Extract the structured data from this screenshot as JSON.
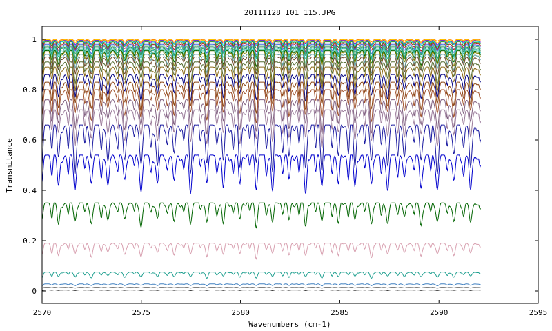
{
  "chart_data": {
    "type": "line",
    "title": "20111128_I01_115.JPG",
    "xlabel": "Wavenumbers (cm-1)",
    "ylabel": "Transmitance",
    "xlim": [
      2570,
      2595
    ],
    "ylim": [
      0,
      1
    ],
    "x_data_range": [
      2570,
      2592.1
    ],
    "xticks": [
      2570,
      2575,
      2580,
      2585,
      2590,
      2595
    ],
    "yticks": [
      0,
      0.2,
      0.4,
      0.6,
      0.8,
      1
    ],
    "xtick_labels": [
      "2570",
      "2575",
      "2580",
      "2585",
      "2590",
      "2595"
    ],
    "ytick_labels": [
      "0",
      "0.2",
      "0.4",
      "0.6",
      "0.8",
      "1"
    ],
    "grid": false,
    "legend": "none",
    "line_spacing_cm1": 0.83,
    "series": [
      {
        "color": "#ff8c00",
        "baseline": 1.0,
        "depth": 0.01
      },
      {
        "color": "#ffd700",
        "baseline": 0.998,
        "depth": 0.015
      },
      {
        "color": "#9400d3",
        "baseline": 0.996,
        "depth": 0.02
      },
      {
        "color": "#00ced1",
        "baseline": 0.994,
        "depth": 0.025
      },
      {
        "color": "#228b22",
        "baseline": 0.99,
        "depth": 0.03
      },
      {
        "color": "#b22222",
        "baseline": 0.985,
        "depth": 0.035
      },
      {
        "color": "#4169e1",
        "baseline": 0.98,
        "depth": 0.04
      },
      {
        "color": "#3cb371",
        "baseline": 0.975,
        "depth": 0.045
      },
      {
        "color": "#2e8b57",
        "baseline": 0.97,
        "depth": 0.05
      },
      {
        "color": "#20b2aa",
        "baseline": 0.965,
        "depth": 0.055
      },
      {
        "color": "#66cdaa",
        "baseline": 0.96,
        "depth": 0.06
      },
      {
        "color": "#006400",
        "baseline": 0.955,
        "depth": 0.065
      },
      {
        "color": "#808000",
        "baseline": 0.95,
        "depth": 0.07
      },
      {
        "color": "#5f9ea0",
        "baseline": 0.94,
        "depth": 0.075
      },
      {
        "color": "#6b4423",
        "baseline": 0.93,
        "depth": 0.08
      },
      {
        "color": "#556b2f",
        "baseline": 0.91,
        "depth": 0.09
      },
      {
        "color": "#8b6914",
        "baseline": 0.89,
        "depth": 0.1
      },
      {
        "color": "#000080",
        "baseline": 0.86,
        "depth": 0.11
      },
      {
        "color": "#8b4513",
        "baseline": 0.83,
        "depth": 0.12
      },
      {
        "color": "#a0522d",
        "baseline": 0.8,
        "depth": 0.13
      },
      {
        "color": "#806080",
        "baseline": 0.76,
        "depth": 0.14
      },
      {
        "color": "#9a7a9a",
        "baseline": 0.72,
        "depth": 0.15
      },
      {
        "color": "#1a1aa0",
        "baseline": 0.66,
        "depth": 0.2
      },
      {
        "color": "#0000cd",
        "baseline": 0.54,
        "depth": 0.16
      },
      {
        "color": "#006400",
        "baseline": 0.35,
        "depth": 0.1
      },
      {
        "color": "#d8a0b0",
        "baseline": 0.19,
        "depth": 0.06
      },
      {
        "color": "#20a090",
        "baseline": 0.075,
        "depth": 0.025
      },
      {
        "color": "#4080c0",
        "baseline": 0.028,
        "depth": 0.008
      },
      {
        "color": "#808080",
        "baseline": 0.015,
        "depth": 0.004
      },
      {
        "color": "#000000",
        "baseline": 0.004,
        "depth": 0.002
      }
    ]
  }
}
